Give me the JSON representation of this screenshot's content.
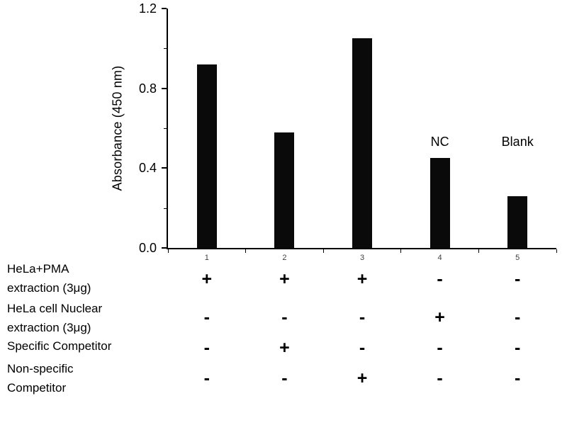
{
  "chart_data": {
    "type": "bar",
    "title": "",
    "xlabel": "",
    "ylabel": "Absorbance (450 nm)",
    "ylim": [
      0,
      1.2
    ],
    "y_ticks": [
      "0.0",
      "0.4",
      "0.8",
      "1.2"
    ],
    "y_minor_ticks": [
      0.2,
      0.6,
      1.0
    ],
    "categories": [
      "1",
      "2",
      "3",
      "4",
      "5"
    ],
    "values": [
      0.92,
      0.58,
      1.05,
      0.45,
      0.26
    ],
    "bar_color": "#0a0a0a",
    "grid": false,
    "legend": "none",
    "annotations": [
      {
        "text": "NC",
        "bar_index": 3
      },
      {
        "text": "Blank",
        "bar_index": 4
      }
    ]
  },
  "condition_table": {
    "rows": [
      {
        "label_lines": [
          "HeLa+PMA",
          "extraction (3μg)"
        ],
        "values": [
          "+",
          "+",
          "+",
          "-",
          "-"
        ]
      },
      {
        "label_lines": [
          "HeLa cell Nuclear",
          "extraction (3μg)"
        ],
        "values": [
          "-",
          "-",
          "-",
          "+",
          "-"
        ]
      },
      {
        "label_lines": [
          "Specific Competitor"
        ],
        "values": [
          "-",
          "+",
          "-",
          "-",
          "-"
        ]
      },
      {
        "label_lines": [
          "Non-specific",
          "Competitor"
        ],
        "values": [
          "-",
          "-",
          "+",
          "-",
          "-"
        ]
      }
    ]
  }
}
